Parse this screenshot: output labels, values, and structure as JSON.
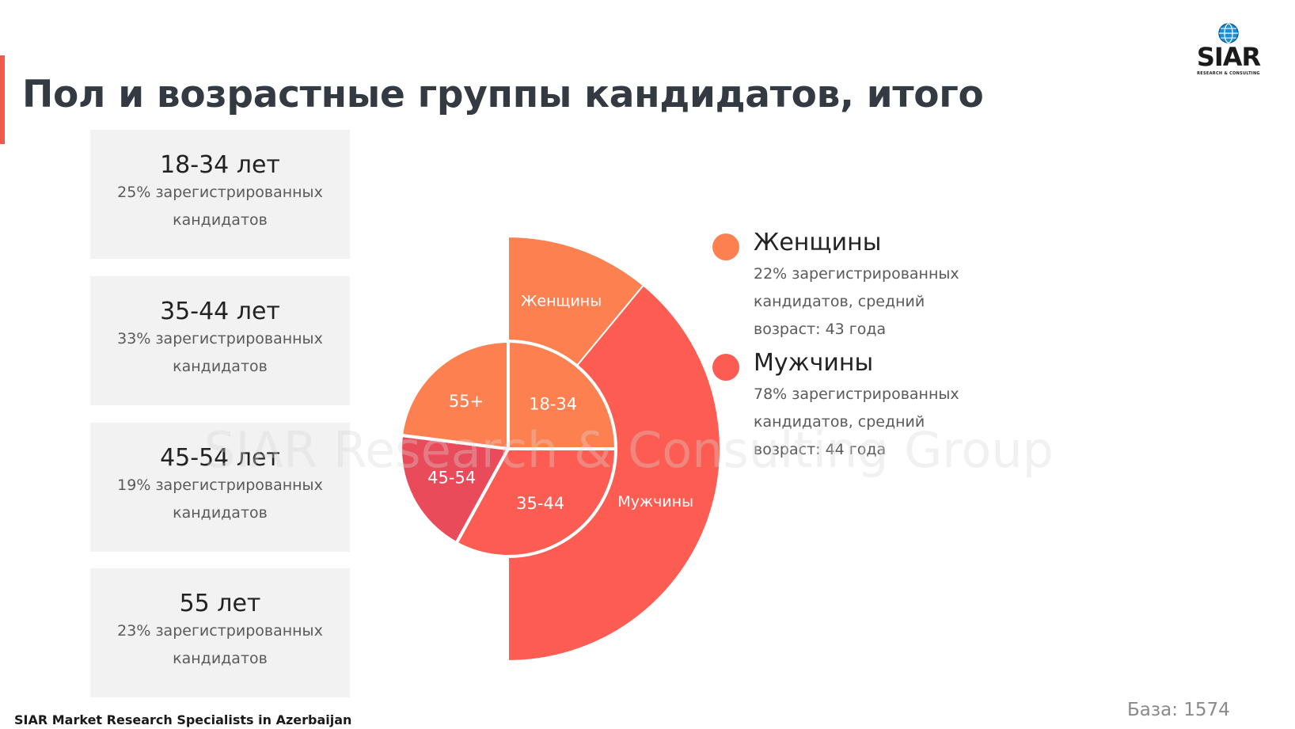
{
  "slide": {
    "title": "Пол и возрастные группы кандидатов, итого",
    "footer": "SIAR Market Research Specialists in Azerbaijan",
    "base_note": "База: 1574",
    "watermark": "SIAR Research & Consulting Group",
    "logo": {
      "word": "SIAR",
      "sub": "RESEARCH & CONSULTING"
    }
  },
  "age_cards": [
    {
      "title": "18-34 лет",
      "desc": "25% зарегистрированных кандидатов"
    },
    {
      "title": "35-44 лет",
      "desc": "33% зарегистрированных кандидатов"
    },
    {
      "title": "45-54 лет",
      "desc": "19% зарегистрированных кандидатов"
    },
    {
      "title": "55 лет",
      "desc": "23% зарегистрированных кандидатов"
    }
  ],
  "legend": [
    {
      "title": "Женщины",
      "desc": "22% зарегистрированных кандидатов, средний возраст: 43 года",
      "color": "#fd8050"
    },
    {
      "title": "Мужчины",
      "desc": "78% зарегистрированных кандидатов, средний возраст: 44 года",
      "color": "#fc5c51"
    }
  ],
  "chart_data": [
    {
      "type": "pie",
      "ring": "outer",
      "categories": [
        "Женщины",
        "Мужчины"
      ],
      "values": [
        22,
        78
      ],
      "colors": [
        "#fd8050",
        "#fc5c51"
      ],
      "labels": [
        "Женщины",
        "Мужчины"
      ],
      "start_angle_deg": 0,
      "sweep_deg": 180,
      "direction": "clockwise"
    },
    {
      "type": "pie",
      "ring": "inner",
      "categories": [
        "18-34",
        "35-44",
        "45-54",
        "55+"
      ],
      "values": [
        25,
        33,
        19,
        23
      ],
      "colors": [
        "#fd8050",
        "#fc5c51",
        "#e94b5a",
        "#fd8050"
      ],
      "labels": [
        "18-34",
        "35-44",
        "45-54",
        "55+"
      ],
      "start_angle_deg": 0,
      "sweep_deg": 360,
      "direction": "clockwise"
    }
  ]
}
